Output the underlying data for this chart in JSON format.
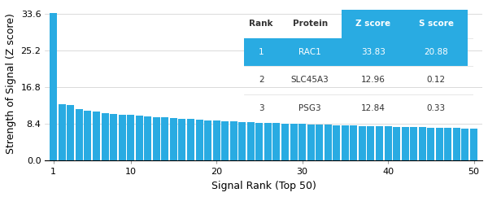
{
  "bar_values": [
    33.83,
    12.96,
    12.84,
    11.8,
    11.5,
    11.2,
    10.9,
    10.75,
    10.6,
    10.5,
    10.3,
    10.15,
    10.05,
    9.9,
    9.75,
    9.6,
    9.5,
    9.38,
    9.25,
    9.15,
    9.05,
    8.95,
    8.87,
    8.8,
    8.72,
    8.65,
    8.58,
    8.52,
    8.46,
    8.4,
    8.34,
    8.28,
    8.22,
    8.16,
    8.1,
    8.05,
    8.0,
    7.95,
    7.9,
    7.85,
    7.8,
    7.75,
    7.7,
    7.65,
    7.6,
    7.55,
    7.5,
    7.45,
    7.4,
    7.35
  ],
  "bar_color": "#29ABE2",
  "highlight_color": "#29ABE2",
  "background_color": "#FFFFFF",
  "xlabel": "Signal Rank (Top 50)",
  "ylabel": "Strength of Signal (Z score)",
  "yticks": [
    0.0,
    8.4,
    16.8,
    25.2,
    33.6
  ],
  "ytick_labels": [
    "0.0",
    "8.4",
    "16.8",
    "25.2",
    "33.6"
  ],
  "xticks": [
    1,
    10,
    20,
    30,
    40,
    50
  ],
  "ylim": [
    0,
    35.5
  ],
  "xlim": [
    0,
    51
  ],
  "table_header": [
    "Rank",
    "Protein",
    "Z score",
    "S score"
  ],
  "table_rows": [
    [
      "1",
      "RAC1",
      "33.83",
      "20.88"
    ],
    [
      "2",
      "SLC45A3",
      "12.96",
      "0.12"
    ],
    [
      "3",
      "PSG3",
      "12.84",
      "0.33"
    ]
  ],
  "table_highlight_row": 0,
  "table_header_bg": "#FFFFFF",
  "table_highlight_bg": "#29ABE2",
  "table_highlight_text": "#FFFFFF",
  "table_normal_text": "#333333",
  "table_zscore_header_bg": "#29ABE2",
  "table_zscore_header_text": "#FFFFFF",
  "grid_color": "#CCCCCC",
  "axis_label_fontsize": 9,
  "tick_fontsize": 8,
  "table_fontsize": 7.5
}
